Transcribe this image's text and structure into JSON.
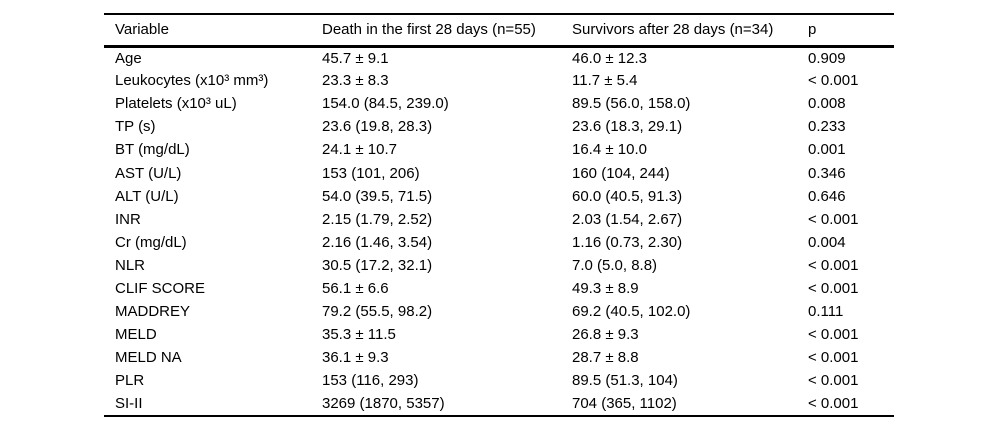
{
  "table": {
    "columns": [
      "Variable",
      "Death in the first 28 days (n=55)",
      "Survivors after 28 days (n=34)",
      "p"
    ],
    "rows": [
      {
        "variable": "Age",
        "death": "45.7 ± 9.1",
        "survivors": "46.0 ± 12.3",
        "p": "0.909"
      },
      {
        "variable": "Leukocytes (x10³ mm³)",
        "death": "23.3 ± 8.3",
        "survivors": "11.7 ± 5.4",
        "p": "< 0.001"
      },
      {
        "variable": "Platelets (x10³ uL)",
        "death": "154.0 (84.5, 239.0)",
        "survivors": "89.5 (56.0, 158.0)",
        "p": "0.008"
      },
      {
        "variable": "TP (s)",
        "death": "23.6 (19.8, 28.3)",
        "survivors": "23.6 (18.3, 29.1)",
        "p": "0.233"
      },
      {
        "variable": "BT (mg/dL)",
        "death": "24.1 ± 10.7",
        "survivors": "16.4 ± 10.0",
        "p": "0.001"
      },
      {
        "variable": "AST (U/L)",
        "death": "153 (101, 206)",
        "survivors": "160 (104, 244)",
        "p": "0.346"
      },
      {
        "variable": "ALT (U/L)",
        "death": "54.0 (39.5, 71.5)",
        "survivors": "60.0 (40.5, 91.3)",
        "p": "0.646"
      },
      {
        "variable": "INR",
        "death": "2.15 (1.79, 2.52)",
        "survivors": "2.03 (1.54, 2.67)",
        "p": "< 0.001"
      },
      {
        "variable": "Cr (mg/dL)",
        "death": "2.16 (1.46, 3.54)",
        "survivors": "1.16 (0.73, 2.30)",
        "p": "0.004"
      },
      {
        "variable": "NLR",
        "death": "30.5 (17.2, 32.1)",
        "survivors": "7.0 (5.0, 8.8)",
        "p": "< 0.001"
      },
      {
        "variable": "CLIF SCORE",
        "death": "56.1 ± 6.6",
        "survivors": "49.3 ± 8.9",
        "p": "< 0.001"
      },
      {
        "variable": "MADDREY",
        "death": "79.2 (55.5, 98.2)",
        "survivors": "69.2 (40.5, 102.0)",
        "p": "0.111"
      },
      {
        "variable": "MELD",
        "death": "35.3 ± 11.5",
        "survivors": "26.8 ± 9.3",
        "p": "< 0.001"
      },
      {
        "variable": "MELD NA",
        "death": "36.1 ± 9.3",
        "survivors": "28.7 ± 8.8",
        "p": "< 0.001"
      },
      {
        "variable": "PLR",
        "death": "153 (116, 293)",
        "survivors": "89.5 (51.3, 104)",
        "p": "< 0.001"
      },
      {
        "variable": "SI-II",
        "death": "3269 (1870, 5357)",
        "survivors": "704 (365, 1102)",
        "p": "< 0.001"
      }
    ]
  },
  "colors": {
    "text": "#000000",
    "background": "#ffffff",
    "rule": "#000000"
  }
}
